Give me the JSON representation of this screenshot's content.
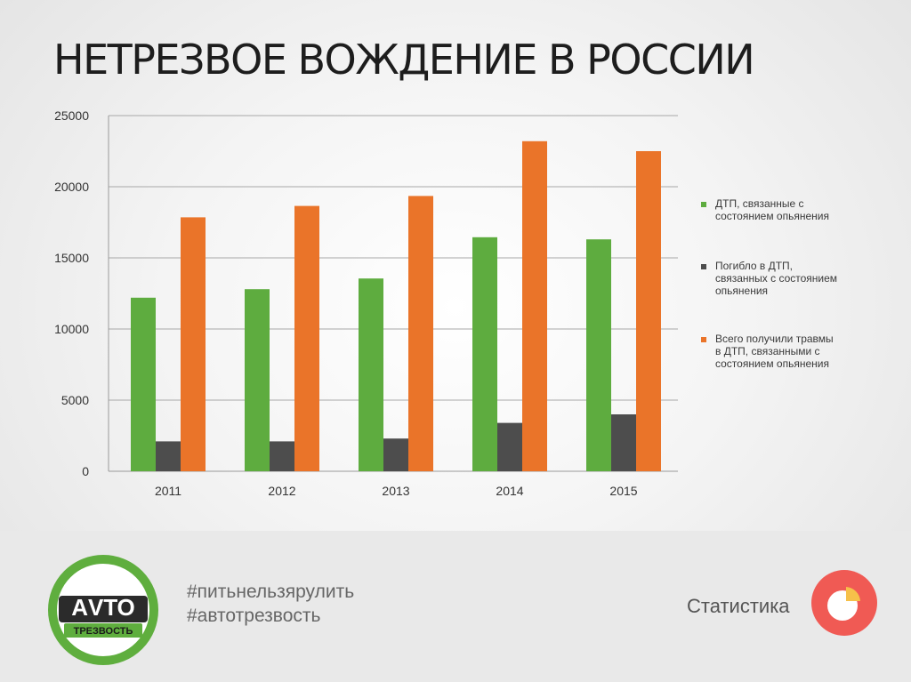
{
  "title": "НЕТРЕЗВОЕ ВОЖДЕНИЕ В РОССИИ",
  "chart_data": {
    "type": "bar",
    "categories": [
      "2011",
      "2012",
      "2013",
      "2014",
      "2015"
    ],
    "series": [
      {
        "name": "ДТП, связанные с состоянием опьянения",
        "color": "#5eac3f",
        "values": [
          12200,
          12800,
          13550,
          16450,
          16300
        ]
      },
      {
        "name": "Погибло в ДТП, связанных с состоянием опьянения",
        "color": "#4d4d4d",
        "values": [
          2100,
          2100,
          2300,
          3400,
          4000
        ]
      },
      {
        "name": "Всего получили травмы в ДТП, связанными с состоянием опьянения",
        "color": "#ea7429",
        "values": [
          17850,
          18650,
          19350,
          23200,
          22500
        ]
      }
    ],
    "yticks": [
      "0",
      "5000",
      "10000",
      "15000",
      "20000",
      "25000"
    ],
    "ylim": [
      0,
      25000
    ],
    "grid": true,
    "legend_position": "right"
  },
  "legend": {
    "items": [
      {
        "line1": "ДТП, связанные с",
        "line2": "состоянием опьянения",
        "line3": ""
      },
      {
        "line1": "Погибло в ДТП,",
        "line2": "связанных с состоянием",
        "line3": "опьянения"
      },
      {
        "line1": "Всего получили травмы",
        "line2": "в ДТП, связанными с",
        "line3": "состоянием опьянения"
      }
    ]
  },
  "footer": {
    "hashtag1": "#питьнельзярулить",
    "hashtag2": "#автотрезвость",
    "stat_label": "Статистика",
    "logo_line1": "АVТО",
    "logo_line2": "ТРЕЗВОСТЬ",
    "logo_icon": "autotrezvost-logo",
    "stat_icon": "pie-chart-icon"
  },
  "colors": {
    "green": "#5eac3f",
    "dark": "#4d4d4d",
    "orange": "#ea7429",
    "icon_red": "#f05a54",
    "icon_yellow": "#f6c04a"
  }
}
